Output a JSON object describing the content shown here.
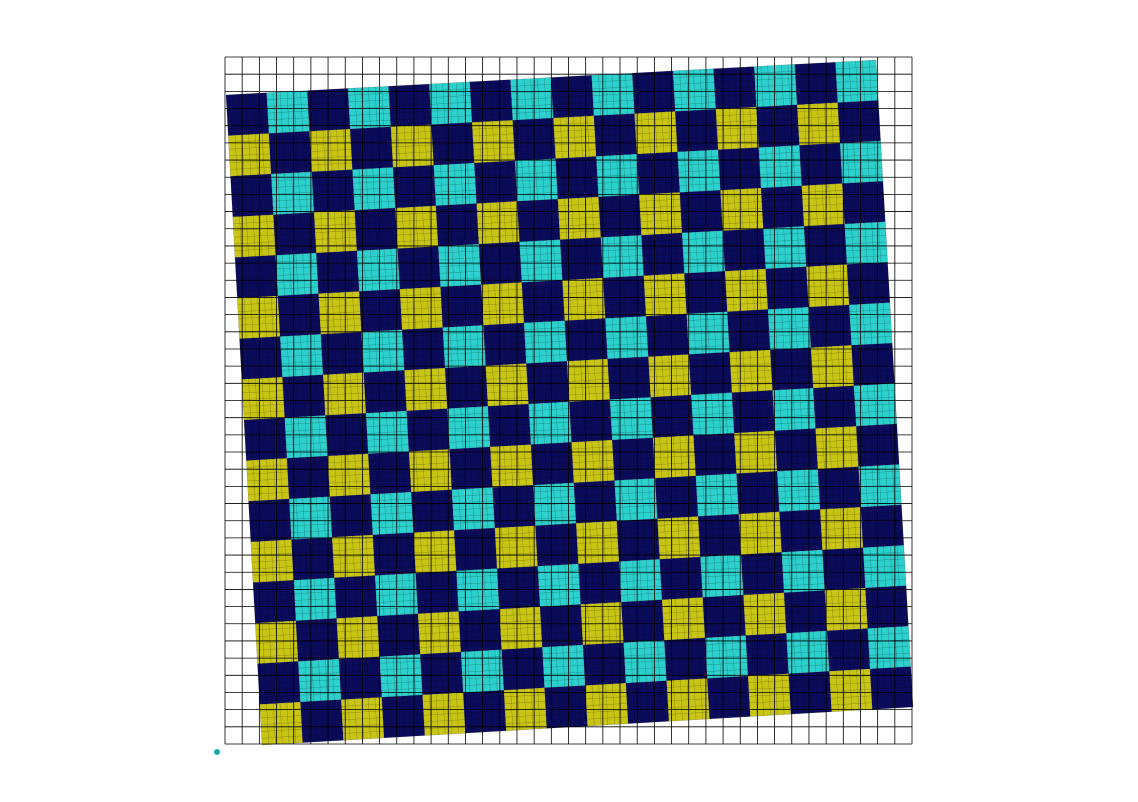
{
  "scene": {
    "background_color": "#ffffff",
    "reference_grid": {
      "columns": 40,
      "rows": 40,
      "line_color": "#000000"
    },
    "checkerboard": {
      "tiles_per_side": 16,
      "rotation_degrees": -4,
      "colors": {
        "dark": "#0b0b5c",
        "cyan": "#2cd0cc",
        "yellow": "#c9c515"
      },
      "fine_mesh_divisions_per_tile": 6,
      "fine_mesh_color": "#000000"
    },
    "origin_marker": {
      "color": "#1aa9a0"
    }
  }
}
